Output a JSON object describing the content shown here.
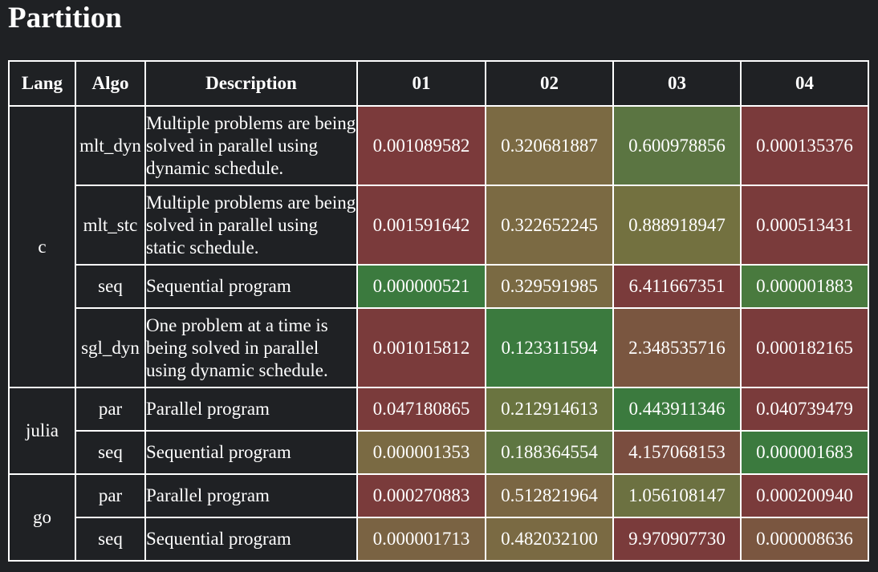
{
  "title": "Partition",
  "headers": {
    "lang": "Lang",
    "algo": "Algo",
    "description": "Description",
    "cols": [
      "01",
      "02",
      "03",
      "04"
    ]
  },
  "groups": [
    {
      "lang": "c",
      "rows": [
        {
          "algo": "mlt_dyn",
          "description": "Multiple problems are being solved in parallel using dynamic schedule.",
          "values": [
            "0.001089582",
            "0.320681887",
            "0.600978856",
            "0.000135376"
          ],
          "colors": [
            "#7b3a3b",
            "#7b6a43",
            "#5b7542",
            "#7a3a3b"
          ]
        },
        {
          "algo": "mlt_stc",
          "description": "Multiple problems are being solved in parallel using static schedule.",
          "values": [
            "0.001591642",
            "0.322652245",
            "0.888918947",
            "0.000513431"
          ],
          "colors": [
            "#7a3a3b",
            "#7b6a43",
            "#737140",
            "#7a3b3b"
          ]
        },
        {
          "algo": "seq",
          "description": "Sequential program",
          "values": [
            "0.000000521",
            "0.329591985",
            "6.411667351",
            "0.000001883"
          ],
          "colors": [
            "#3b7a3e",
            "#7a6a43",
            "#7a3b3b",
            "#497a3e"
          ]
        },
        {
          "algo": "sgl_dyn",
          "description": "One problem at a time is being solved in parallel using dynamic schedule.",
          "values": [
            "0.001015812",
            "0.123311594",
            "2.348535716",
            "0.000182165"
          ],
          "colors": [
            "#7a3b3b",
            "#3b7a3e",
            "#7a5640",
            "#7a3b3b"
          ]
        }
      ]
    },
    {
      "lang": "julia",
      "rows": [
        {
          "algo": "par",
          "description": "Parallel program",
          "values": [
            "0.047180865",
            "0.212914613",
            "0.443911346",
            "0.040739479"
          ],
          "colors": [
            "#7a3b3b",
            "#6a7440",
            "#3b7a3e",
            "#7a3b3b"
          ]
        },
        {
          "algo": "seq",
          "description": "Sequential program",
          "values": [
            "0.000001353",
            "0.188364554",
            "4.157068153",
            "0.000001683"
          ],
          "colors": [
            "#7a6a43",
            "#5e7642",
            "#7a4d3f",
            "#3b7a3e"
          ]
        }
      ]
    },
    {
      "lang": "go",
      "rows": [
        {
          "algo": "par",
          "description": "Parallel program",
          "values": [
            "0.000270883",
            "0.512821964",
            "1.056108147",
            "0.000200940"
          ],
          "colors": [
            "#7a3b3b",
            "#7a6643",
            "#6c7141",
            "#7a3b3b"
          ]
        },
        {
          "algo": "seq",
          "description": "Sequential program",
          "values": [
            "0.000001713",
            "0.482032100",
            "9.970907730",
            "0.000008636"
          ],
          "colors": [
            "#7a6343",
            "#7a6a43",
            "#7a3b3b",
            "#7a5640"
          ]
        }
      ]
    }
  ]
}
